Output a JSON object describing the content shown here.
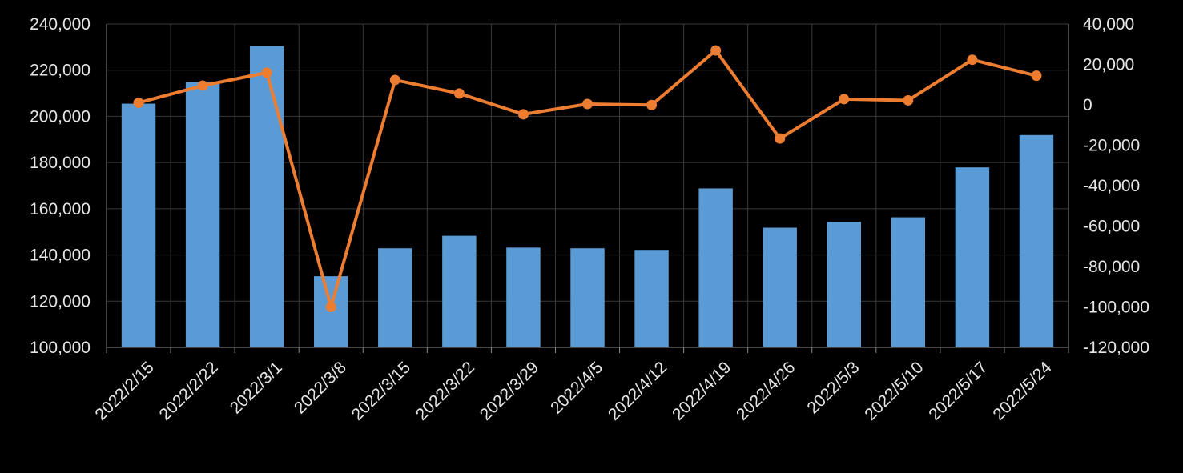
{
  "chart_data": {
    "type": "bar+line",
    "title": "",
    "xlabel": "",
    "ylabel": "",
    "ylabel_right": "",
    "categories": [
      "2022/2/15",
      "2022/2/22",
      "2022/3/1",
      "2022/3/8",
      "2022/3/15",
      "2022/3/22",
      "2022/3/29",
      "2022/4/5",
      "2022/4/12",
      "2022/4/19",
      "2022/4/26",
      "2022/5/3",
      "2022/5/10",
      "2022/5/17",
      "2022/5/24"
    ],
    "series": [
      {
        "type": "bar",
        "axis": "left",
        "color": "#5b9bd5",
        "values": [
          205500,
          214800,
          230400,
          130800,
          142900,
          148300,
          143200,
          142900,
          142200,
          168800,
          151800,
          154300,
          156300,
          177900,
          191900
        ]
      },
      {
        "type": "line",
        "axis": "right",
        "color": "#ed7d31",
        "values": [
          1000,
          9500,
          15900,
          -100000,
          12300,
          5600,
          -4700,
          400,
          -100,
          26900,
          -16700,
          2800,
          2200,
          22300,
          14400
        ]
      }
    ],
    "ylim": [
      100000,
      240000
    ],
    "y_ticks": [
      "100,000",
      "120,000",
      "140,000",
      "160,000",
      "180,000",
      "200,000",
      "220,000",
      "240,000"
    ],
    "ylim_right": [
      -120000,
      40000
    ],
    "y_right_ticks": [
      "-120,000",
      "-100,000",
      "-80,000",
      "-60,000",
      "-40,000",
      "-20,000",
      "0",
      "20,000",
      "40,000"
    ],
    "grid": true,
    "legend": "none"
  }
}
